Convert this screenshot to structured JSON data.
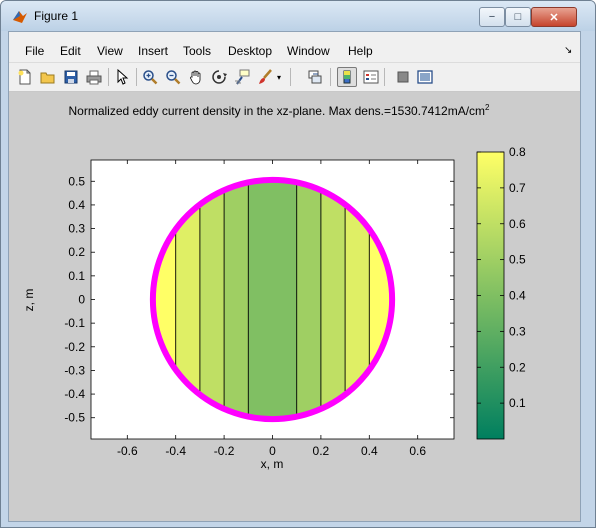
{
  "window": {
    "title": "Figure 1",
    "buttons": {
      "minimize": "−",
      "maximize": "□",
      "close": "✕"
    }
  },
  "menu": {
    "items": [
      "File",
      "Edit",
      "View",
      "Insert",
      "Tools",
      "Desktop",
      "Window",
      "Help"
    ]
  },
  "toolbar": {
    "icons": [
      "new-figure-icon",
      "open-file-icon",
      "save-figure-icon",
      "print-figure-icon",
      "edit-plot-icon",
      "zoom-in-icon",
      "zoom-out-icon",
      "pan-icon",
      "rotate-3d-icon",
      "data-cursor-icon",
      "brush-icon",
      "brush-dropdown-icon",
      "link-plot-icon",
      "insert-colorbar-icon",
      "insert-legend-icon",
      "hide-plot-tools-icon",
      "show-plot-tools-icon"
    ],
    "pressed": "insert-colorbar-icon"
  },
  "plot": {
    "title_main": "Normalized eddy current density in the xz-plane. Max dens.=1530.7412mA/cm",
    "title_sup": "2",
    "xlabel": "x, m",
    "ylabel": "z, m",
    "xticks": [
      "-0.6",
      "-0.4",
      "-0.2",
      "0",
      "0.2",
      "0.4",
      "0.6"
    ],
    "yticks": [
      "0.5",
      "0.4",
      "0.3",
      "0.2",
      "0.1",
      "0",
      "-0.1",
      "-0.2",
      "-0.3",
      "-0.4",
      "-0.5"
    ],
    "colorbar_ticks": [
      "0.8",
      "0.7",
      "0.6",
      "0.5",
      "0.4",
      "0.3",
      "0.2",
      "0.1"
    ]
  },
  "chart_data": {
    "type": "heatmap",
    "title": "Normalized eddy current density in the xz-plane. Max dens.=1530.7412mA/cm^2",
    "xlabel": "x, m",
    "ylabel": "z, m",
    "xlim": [
      -0.75,
      0.75
    ],
    "ylim": [
      -0.59,
      0.59
    ],
    "circle_radius": 0.5,
    "circle_color": "#ff00ff",
    "x_boundaries": [
      -0.5,
      -0.4,
      -0.3,
      -0.2,
      -0.1,
      0.1,
      0.2,
      0.3,
      0.4,
      0.5
    ],
    "band_levels": [
      0.8,
      0.7,
      0.6,
      0.5,
      0.4,
      0.5,
      0.6,
      0.7,
      0.8
    ],
    "colorbar_range": [
      0,
      0.8
    ],
    "colors": {
      "low": "#007f5f",
      "high": "#ffff66"
    }
  }
}
